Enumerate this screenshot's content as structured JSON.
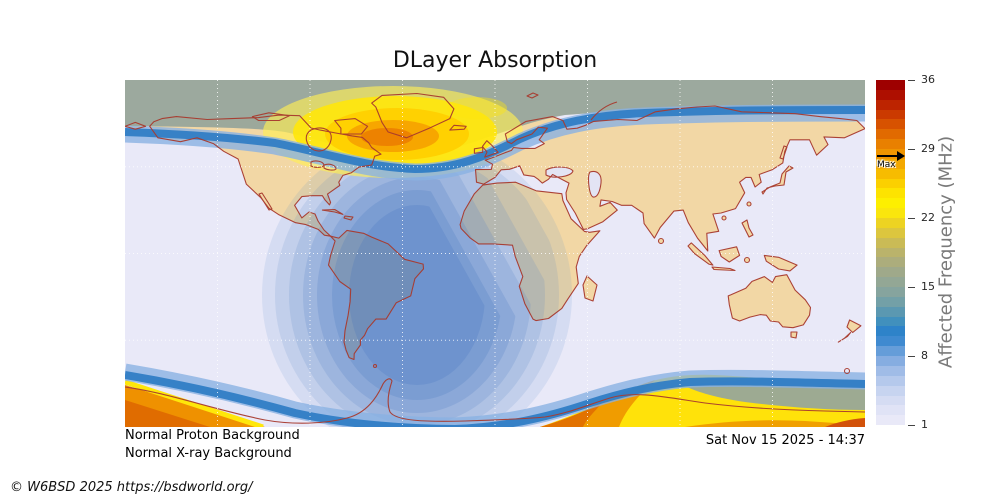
{
  "figure": {
    "title": "DLayer Absorption",
    "status_lines": [
      "Normal Proton Background",
      "Normal X-ray Background"
    ],
    "timestamp": "Sat Nov 15 2025 - 14:37",
    "credit": "© W6BSD 2025 https://bsdworld.org/"
  },
  "colorbar": {
    "label": "Affected Frequency (MHz)",
    "min": 1,
    "max": 36,
    "ticks": [
      36,
      29,
      22,
      15,
      8,
      1
    ],
    "max_marker": {
      "label": "Max",
      "value_mhz": 28.3
    },
    "colors_bottom_to_top": [
      "#e9e9f8",
      "#e0e3f6",
      "#d5dcf3",
      "#c7d4f0",
      "#b5c9ec",
      "#a0bce7",
      "#86ade1",
      "#659dd9",
      "#3f8ad0",
      "#2e83c9",
      "#4190bd",
      "#5b98b1",
      "#73a0a7",
      "#86a49e",
      "#93a795",
      "#9fa98a",
      "#acad7c",
      "#bab36b",
      "#cabb56",
      "#dcc63e",
      "#edd322",
      "#fae60d",
      "#fdef00",
      "#fde300",
      "#fbd000",
      "#f7bc00",
      "#f3a800",
      "#ef9400",
      "#e98000",
      "#e16a00",
      "#d75200",
      "#cb3a00",
      "#bd2400",
      "#ae0f00",
      "#9e0000"
    ]
  },
  "chart_data": {
    "type": "heatmap",
    "title": "DLayer Absorption",
    "colorbar_label": "Affected Frequency (MHz)",
    "scale_mhz": [
      1,
      36
    ],
    "tick_values_mhz": [
      36,
      29,
      22,
      15,
      8,
      1
    ],
    "max_observed_mhz": 28.3,
    "regions": [
      {
        "region": "North polar cap (top gray band)",
        "approx_mhz": "15-17"
      },
      {
        "region": "Northern auroral oval over NE Canada / Greenland",
        "approx_mhz": "22-28"
      },
      {
        "region": "Auroral boundary blue ribbons",
        "approx_mhz": "8-10"
      },
      {
        "region": "Sunlit core near sub-solar point (South Atlantic)",
        "approx_mhz": "6-8"
      },
      {
        "region": "Sunlit mid-zone contours",
        "approx_mhz": "2-6"
      },
      {
        "region": "Night hemisphere (lavender)",
        "approx_mhz": "1-2"
      },
      {
        "region": "Southern auroral zone (bottom yellow/orange)",
        "approx_mhz": "22-30"
      },
      {
        "region": "South polar cap patch (bottom gray)",
        "approx_mhz": "15-17"
      }
    ]
  },
  "map_colors": {
    "night_background": "#e9e9f8",
    "land": "#f2d7a5",
    "coastline": "#a83a2e",
    "polar_cap_gray": "#98a69a",
    "auroral_blue": "#2e7cc4",
    "day_blue_core": "#779bd2",
    "auroral_yellow": "#ffe70a",
    "auroral_orange": "#f09c00",
    "auroral_deep_orange": "#d2520a"
  }
}
